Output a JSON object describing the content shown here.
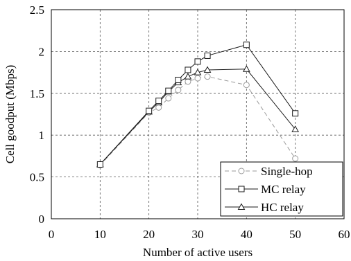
{
  "chart_data": {
    "type": "line",
    "xlabel": "Number of active users",
    "ylabel": "Cell goodput (Mbps)",
    "xlim": [
      0,
      60
    ],
    "ylim": [
      0,
      2.5
    ],
    "x_ticks": [
      0,
      10,
      20,
      30,
      40,
      50,
      60
    ],
    "y_ticks": [
      0,
      0.5,
      1,
      1.5,
      2,
      2.5
    ],
    "x_tick_labels": [
      "0",
      "10",
      "20",
      "30",
      "40",
      "50",
      "60"
    ],
    "y_tick_labels": [
      "0",
      "0.5",
      "1",
      "1.5",
      "2",
      "2.5"
    ],
    "grid": "dashed",
    "legend_position": "bottom-right",
    "series": [
      {
        "name": "Single-hop",
        "marker": "circle",
        "line": "dashed",
        "color": "#9a9a9a",
        "x": [
          10,
          20,
          22,
          24,
          26,
          28,
          30,
          32,
          40,
          50
        ],
        "y": [
          0.64,
          1.27,
          1.33,
          1.44,
          1.54,
          1.64,
          1.68,
          1.7,
          1.6,
          0.72
        ]
      },
      {
        "name": "MC relay",
        "marker": "square",
        "line": "solid",
        "color": "#1a1a1a",
        "x": [
          10,
          20,
          22,
          24,
          26,
          28,
          30,
          32,
          40,
          50
        ],
        "y": [
          0.65,
          1.29,
          1.41,
          1.53,
          1.66,
          1.78,
          1.88,
          1.95,
          2.08,
          1.26
        ]
      },
      {
        "name": "HC relay",
        "marker": "triangle",
        "line": "solid",
        "color": "#1a1a1a",
        "x": [
          10,
          20,
          22,
          24,
          26,
          28,
          30,
          32,
          40,
          50
        ],
        "y": [
          0.65,
          1.28,
          1.39,
          1.52,
          1.63,
          1.7,
          1.75,
          1.78,
          1.79,
          1.07
        ]
      }
    ]
  }
}
